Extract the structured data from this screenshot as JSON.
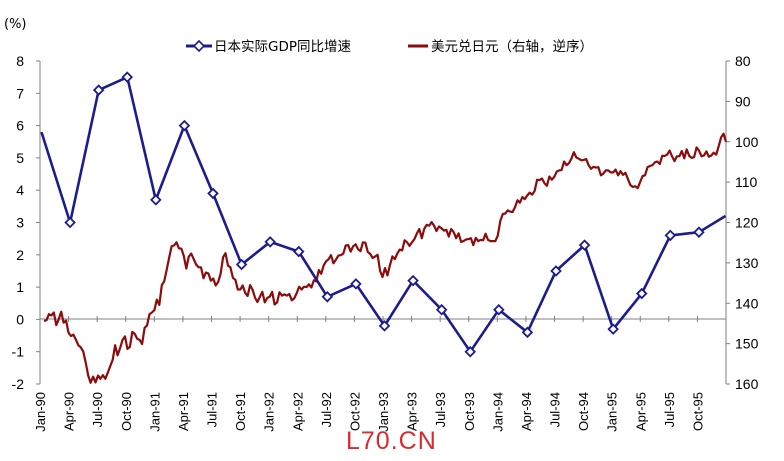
{
  "colors": {
    "gdp": "#1c1c8c",
    "fx": "#8c0b0b",
    "watermark": "#d92b2b",
    "axis": "#808080"
  },
  "legend": {
    "gdp": "日本实际GDP同比增速",
    "fx": "美元兑日元（右轴，逆序）"
  },
  "left_unit": "(%)",
  "watermark": "L70.CN",
  "chart_data": {
    "type": "line",
    "left_axis": {
      "unit": "%",
      "ylim": [
        -2,
        8
      ],
      "ticks": [
        -2,
        -1,
        0,
        1,
        2,
        3,
        4,
        5,
        6,
        7,
        8
      ]
    },
    "right_axis": {
      "ylim": [
        80,
        160
      ],
      "inverted": true,
      "ticks": [
        80,
        90,
        100,
        110,
        120,
        130,
        140,
        150,
        160
      ]
    },
    "x_tick_labels": [
      "Jan-90",
      "Apr-90",
      "Jul-90",
      "Oct-90",
      "Jan-91",
      "Apr-91",
      "Jul-91",
      "Oct-91",
      "Jan-92",
      "Apr-92",
      "Jul-92",
      "Oct-92",
      "Jan-93",
      "Apr-93",
      "Jul-93",
      "Oct-93",
      "Jan-94",
      "Apr-94",
      "Jul-94",
      "Oct-94",
      "Jan-95",
      "Apr-95",
      "Jul-95",
      "Oct-95"
    ],
    "legend_position": "top",
    "grid": false,
    "series": [
      {
        "name": "日本实际GDP同比增速",
        "axis": "left",
        "style": "line-with-diamond-markers",
        "x": [
          "1990Q1",
          "1990Q2",
          "1990Q3",
          "1990Q4",
          "1991Q1",
          "1991Q2",
          "1991Q3",
          "1991Q4",
          "1992Q1",
          "1992Q2",
          "1992Q3",
          "1992Q4",
          "1993Q1",
          "1993Q2",
          "1993Q3",
          "1993Q4",
          "1994Q1",
          "1994Q2",
          "1994Q3",
          "1994Q4",
          "1995Q1",
          "1995Q2",
          "1995Q3",
          "1995Q4",
          "1996Q1"
        ],
        "values": [
          5.8,
          3.0,
          7.1,
          7.5,
          3.7,
          6.0,
          3.9,
          1.7,
          2.4,
          2.1,
          0.7,
          1.1,
          -0.2,
          1.2,
          0.3,
          -1.0,
          0.3,
          -0.4,
          1.5,
          2.3,
          -0.3,
          0.8,
          2.6,
          2.7,
          3.2
        ],
        "markers": [
          false,
          true,
          true,
          true,
          true,
          true,
          true,
          true,
          true,
          true,
          true,
          true,
          true,
          true,
          true,
          true,
          true,
          true,
          true,
          true,
          true,
          true,
          true,
          true,
          false
        ]
      },
      {
        "name": "美元兑日元（右轴，逆序）",
        "axis": "right",
        "style": "line",
        "x_start": "Jan-90",
        "x_end": "Dec-95",
        "values": [
          144.4,
          144.2,
          142.7,
          143.0,
          142.3,
          145.4,
          144.0,
          142.1,
          144.8,
          144.3,
          147.3,
          148.1,
          147.8,
          149.0,
          150.4,
          150.9,
          152.0,
          154.7,
          157.9,
          159.7,
          158.2,
          159.6,
          157.9,
          158.7,
          157.8,
          158.7,
          157.2,
          155.6,
          154.0,
          150.4,
          152.9,
          151.1,
          149.1,
          148.2,
          151.3,
          150.8,
          147.1,
          147.6,
          148.8,
          149.1,
          150.1,
          146.1,
          145.5,
          142.7,
          142.3,
          141.7,
          139.1,
          140.4,
          135.5,
          134.6,
          131.7,
          128.8,
          125.9,
          125.7,
          124.9,
          126.4,
          126.5,
          128.3,
          131.4,
          128.5,
          127.7,
          129.0,
          130.4,
          131.1,
          131.1,
          133.8,
          132.4,
          132.6,
          134.4,
          133.9,
          135.6,
          134.7,
          132.7,
          128.6,
          127.6,
          130.7,
          131.1,
          133.7,
          134.2,
          136.6,
          136.6,
          135.6,
          137.4,
          138.2,
          135.5,
          136.6,
          138.6,
          139.7,
          138.4,
          137.2,
          139.8,
          138.7,
          138.4,
          137.2,
          140.3,
          139.8,
          137.3,
          138.1,
          137.8,
          138.1,
          137.7,
          139.3,
          138.8,
          137.5,
          135.9,
          136.6,
          135.9,
          136.0,
          135.3,
          136.1,
          134.3,
          134.6,
          131.8,
          132.7,
          130.6,
          129.6,
          129.1,
          128.1,
          130.1,
          129.2,
          128.2,
          128.1,
          127.7,
          125.7,
          125.6,
          127.2,
          125.9,
          125.4,
          126.6,
          127.1,
          124.9,
          125.0,
          127.3,
          127.8,
          128.8,
          128.4,
          128.0,
          132.0,
          133.5,
          131.3,
          133.1,
          130.6,
          128.4,
          129.1,
          127.7,
          126.7,
          126.9,
          124.4,
          124.9,
          125.8,
          124.9,
          124.1,
          122.7,
          121.6,
          123.9,
          121.5,
          120.6,
          120.8,
          119.9,
          120.8,
          122.1,
          121.0,
          121.4,
          122.0,
          121.8,
          123.5,
          121.6,
          122.4,
          123.9,
          122.7,
          124.8,
          124.6,
          124.2,
          124.1,
          123.9,
          125.6,
          123.8,
          124.6,
          124.3,
          124.4,
          122.8,
          124.3,
          124.6,
          124.6,
          124.6,
          123.2,
          119.6,
          117.9,
          117.8,
          117.0,
          117.3,
          117.4,
          116.2,
          114.5,
          115.1,
          113.7,
          114.2,
          113.3,
          112.6,
          113.1,
          112.2,
          109.4,
          109.5,
          109.1,
          110.3,
          110.9,
          108.6,
          109.4,
          108.7,
          107.4,
          107.1,
          107.0,
          104.9,
          105.8,
          105.3,
          104.2,
          102.6,
          103.9,
          104.2,
          104.6,
          104.5,
          104.3,
          105.8,
          106.7,
          106.2,
          106.4,
          106.3,
          108.3,
          107.9,
          107.1,
          107.1,
          107.6,
          107.6,
          106.9,
          108.3,
          107.3,
          108.2,
          107.7,
          109.2,
          110.7,
          111.2,
          111.0,
          111.5,
          110.0,
          108.5,
          108.3,
          106.3,
          106.0,
          105.8,
          105.1,
          104.9,
          105.5,
          103.5,
          103.5,
          103.2,
          102.2,
          103.6,
          104.8,
          103.6,
          103.6,
          102.3,
          104.1,
          101.9,
          103.5,
          104.0,
          103.8,
          101.4,
          102.2,
          103.6,
          103.4,
          102.4,
          103.7,
          103.4,
          102.7,
          103.2,
          101.2,
          98.9,
          98.0,
          100.0
        ]
      }
    ]
  }
}
